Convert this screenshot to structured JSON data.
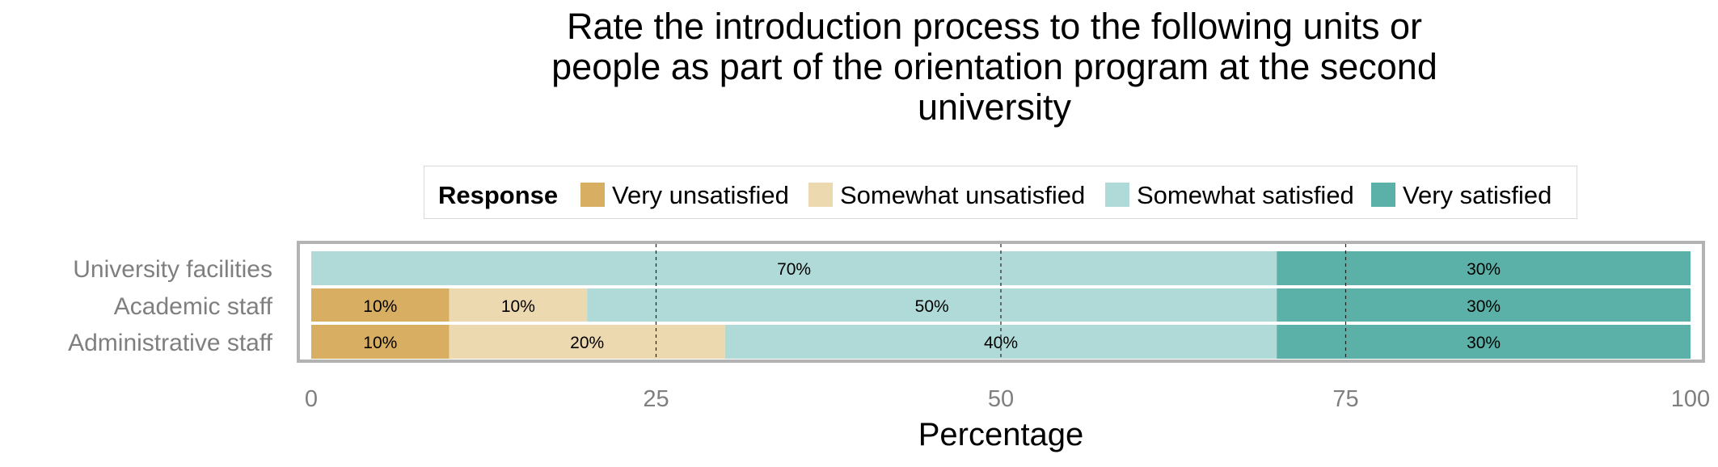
{
  "chart_data": {
    "type": "bar",
    "stacked": true,
    "orientation": "horizontal",
    "title": "Rate the introduction process to the following units or people as part of the orientation program at the second university",
    "title_lines": [
      "Rate the introduction process to the following units or",
      "people as part of the orientation program at the second",
      "university"
    ],
    "xlabel": "Percentage",
    "ylabel": "",
    "xlim": [
      0,
      100
    ],
    "xticks": [
      0,
      25,
      50,
      75,
      100
    ],
    "grid": "vertical dashed at 25, 50, 75",
    "legend": {
      "title": "Response",
      "placement": "top"
    },
    "categories": [
      "University facilities",
      "Academic staff",
      "Administrative staff"
    ],
    "series": [
      {
        "name": "Very unsatisfied",
        "color": "#D8AF62",
        "values": [
          0,
          10,
          10
        ],
        "labels": [
          "",
          "10%",
          "10%"
        ]
      },
      {
        "name": "Somewhat unsatisfied",
        "color": "#EDD9AF",
        "values": [
          0,
          10,
          20
        ],
        "labels": [
          "",
          "10%",
          "20%"
        ]
      },
      {
        "name": "Somewhat satisfied",
        "color": "#AFDAD7",
        "values": [
          70,
          50,
          40
        ],
        "labels": [
          "70%",
          "50%",
          "40%"
        ]
      },
      {
        "name": "Very satisfied",
        "color": "#5BB1A7",
        "values": [
          30,
          30,
          30
        ],
        "labels": [
          "30%",
          "30%",
          "30%"
        ]
      }
    ]
  }
}
